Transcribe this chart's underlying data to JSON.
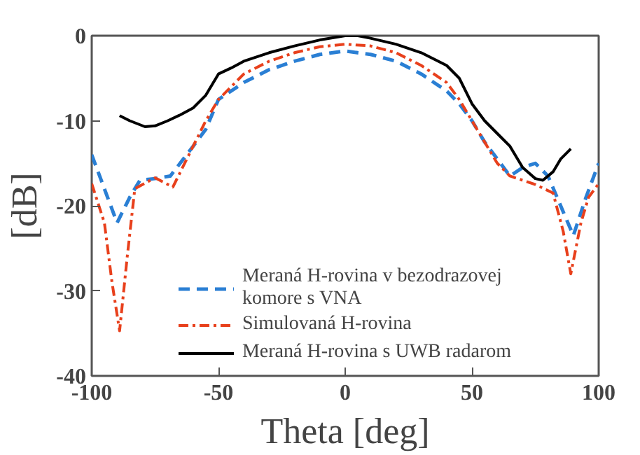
{
  "chart_data": {
    "type": "line",
    "xlabel": "Theta [deg]",
    "ylabel": "[dB]",
    "xlim": [
      -100,
      100
    ],
    "xticks": [
      -100,
      -50,
      0,
      50,
      100
    ],
    "ylim": [
      -40,
      0
    ],
    "yticks": [
      -40,
      -30,
      -20,
      -10,
      0
    ],
    "grid": false,
    "legend": "bottom",
    "marker": "none",
    "series": [
      {
        "name": "Meraná H-rovina v bezodrazovej komore s VNA",
        "color": "#2a7fd4",
        "line_style": "dashed",
        "x": [
          -100,
          -95,
          -90,
          -85,
          -81,
          -75,
          -69,
          -60,
          -55,
          -50,
          -40,
          -30,
          -20,
          -10,
          0,
          10,
          20,
          30,
          40,
          45,
          50,
          55,
          60,
          65,
          70,
          75,
          80,
          85,
          90,
          95,
          100
        ],
        "values": [
          -14,
          -18,
          -22,
          -19,
          -17,
          -16.8,
          -16.5,
          -13,
          -11,
          -7.5,
          -5.5,
          -4,
          -3,
          -2.2,
          -1.8,
          -2.2,
          -3,
          -4.5,
          -6.5,
          -8,
          -10,
          -12.5,
          -14.5,
          -16.5,
          -15.5,
          -15,
          -16.5,
          -20,
          -23.5,
          -19,
          -15
        ]
      },
      {
        "name": "Simulovaná H-rovina",
        "color": "#e8401c",
        "line_style": "dashdot",
        "x": [
          -100,
          -95,
          -92,
          -89,
          -86,
          -83,
          -75,
          -68,
          -60,
          -55,
          -50,
          -40,
          -30,
          -20,
          -10,
          0,
          10,
          20,
          30,
          40,
          45,
          50,
          55,
          60,
          65,
          75,
          82,
          86,
          89,
          93,
          96,
          100
        ],
        "values": [
          -17.4,
          -22,
          -29,
          -34.7,
          -26,
          -18,
          -16.7,
          -17.8,
          -13,
          -10,
          -7.5,
          -4.5,
          -3,
          -2,
          -1.3,
          -1,
          -1.2,
          -2,
          -3.5,
          -5.5,
          -7.5,
          -10,
          -12.5,
          -15,
          -16.5,
          -17.5,
          -18.5,
          -23,
          -28,
          -22,
          -19,
          -17.4
        ]
      },
      {
        "name": "Meraná H-rovina s UWB radarom",
        "color": "#000000",
        "line_style": "solid",
        "x": [
          -89,
          -85,
          -79,
          -75,
          -70,
          -65,
          -60,
          -55,
          -50,
          -45,
          -40,
          -30,
          -20,
          -10,
          0,
          5,
          10,
          20,
          30,
          40,
          45,
          50,
          55,
          60,
          65,
          70,
          75,
          78,
          82,
          85,
          89
        ],
        "values": [
          -9.4,
          -10,
          -10.7,
          -10.6,
          -10,
          -9.3,
          -8.5,
          -7,
          -4.5,
          -3.8,
          -3,
          -2,
          -1.2,
          -0.5,
          0,
          0,
          -0.3,
          -1,
          -2,
          -3.5,
          -5,
          -8,
          -10,
          -11.5,
          -13,
          -15.5,
          -16.8,
          -17,
          -16,
          -14.5,
          -13.3
        ]
      }
    ]
  }
}
